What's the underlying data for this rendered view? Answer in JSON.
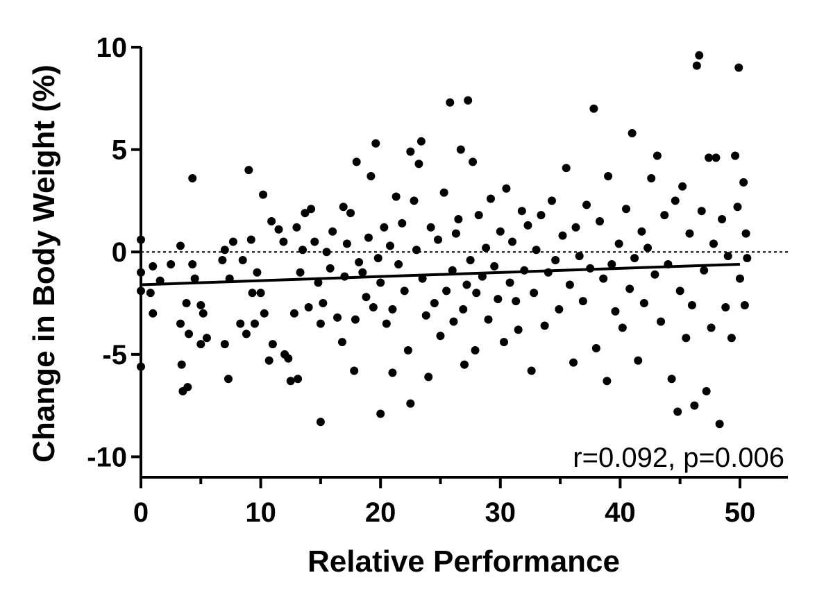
{
  "chart_data": {
    "type": "scatter",
    "title": "",
    "xlabel": "Relative Performance",
    "ylabel": "Change in Body Weight (%)",
    "xlim": [
      0,
      54
    ],
    "ylim": [
      -11,
      10
    ],
    "xticks": [
      0,
      10,
      20,
      30,
      40,
      50
    ],
    "yticks": [
      10,
      5,
      0,
      -5,
      -10
    ],
    "grid": false,
    "reference_line": {
      "y": 0,
      "style": "dotted"
    },
    "fit_line": {
      "x": [
        0,
        50
      ],
      "y": [
        -1.6,
        -0.6
      ]
    },
    "annotation": "r=0.092, p=0.006",
    "point_color": "#000000",
    "series": [
      {
        "values": [
          [
            0,
            0.6
          ],
          [
            0,
            -1.0
          ],
          [
            0,
            -1.9
          ],
          [
            0,
            -5.6
          ],
          [
            0.8,
            -2.0
          ],
          [
            1.0,
            -3.0
          ],
          [
            1.0,
            -0.7
          ],
          [
            1.6,
            -1.4
          ],
          [
            2.5,
            -0.6
          ],
          [
            3.3,
            0.3
          ],
          [
            3.3,
            -3.5
          ],
          [
            3.4,
            -5.5
          ],
          [
            3.5,
            -6.8
          ],
          [
            3.8,
            -2.5
          ],
          [
            3.9,
            -6.6
          ],
          [
            4.0,
            -4.0
          ],
          [
            4.3,
            3.6
          ],
          [
            4.3,
            -0.6
          ],
          [
            4.5,
            -1.3
          ],
          [
            5.0,
            -2.6
          ],
          [
            5.0,
            -4.5
          ],
          [
            5.2,
            -3.0
          ],
          [
            5.5,
            -4.2
          ],
          [
            6.8,
            -0.4
          ],
          [
            7.0,
            -4.5
          ],
          [
            7.0,
            0.1
          ],
          [
            7.3,
            -6.2
          ],
          [
            7.4,
            -1.3
          ],
          [
            7.7,
            0.5
          ],
          [
            8.3,
            -3.5
          ],
          [
            8.5,
            -0.4
          ],
          [
            8.8,
            -4.0
          ],
          [
            9.0,
            4.0
          ],
          [
            9.2,
            0.6
          ],
          [
            9.3,
            -2.0
          ],
          [
            9.5,
            -3.5
          ],
          [
            9.7,
            -1.0
          ],
          [
            10.0,
            -2.0
          ],
          [
            10.2,
            2.8
          ],
          [
            10.3,
            -3.0
          ],
          [
            10.7,
            -5.3
          ],
          [
            10.9,
            1.5
          ],
          [
            11.0,
            -4.5
          ],
          [
            11.5,
            1.1
          ],
          [
            11.9,
            0.5
          ],
          [
            12.0,
            -5.0
          ],
          [
            12.3,
            -5.2
          ],
          [
            12.5,
            -6.3
          ],
          [
            12.8,
            -3.0
          ],
          [
            13.0,
            1.2
          ],
          [
            13.1,
            -6.2
          ],
          [
            13.3,
            -1.0
          ],
          [
            13.5,
            0.1
          ],
          [
            13.7,
            1.9
          ],
          [
            14.0,
            -2.7
          ],
          [
            14.2,
            2.1
          ],
          [
            14.5,
            0.5
          ],
          [
            14.8,
            -1.5
          ],
          [
            15.0,
            -8.3
          ],
          [
            15.0,
            -3.5
          ],
          [
            15.2,
            -2.5
          ],
          [
            15.5,
            0.0
          ],
          [
            15.8,
            -0.8
          ],
          [
            16.0,
            1.0
          ],
          [
            16.4,
            -3.2
          ],
          [
            16.8,
            -4.4
          ],
          [
            16.9,
            2.2
          ],
          [
            17.0,
            -1.2
          ],
          [
            17.2,
            0.4
          ],
          [
            17.5,
            1.9
          ],
          [
            17.8,
            -5.8
          ],
          [
            17.9,
            -3.3
          ],
          [
            18.0,
            4.4
          ],
          [
            18.2,
            -0.5
          ],
          [
            18.5,
            -1.0
          ],
          [
            18.8,
            -2.2
          ],
          [
            19.0,
            0.7
          ],
          [
            19.2,
            3.7
          ],
          [
            19.4,
            -2.7
          ],
          [
            19.6,
            5.3
          ],
          [
            19.8,
            -0.3
          ],
          [
            20.0,
            -7.9
          ],
          [
            20.0,
            -1.5
          ],
          [
            20.3,
            1.2
          ],
          [
            20.5,
            -3.5
          ],
          [
            20.8,
            0.3
          ],
          [
            21.0,
            -2.8
          ],
          [
            21.0,
            -5.9
          ],
          [
            21.3,
            2.7
          ],
          [
            21.5,
            -0.6
          ],
          [
            21.8,
            1.4
          ],
          [
            22.0,
            -1.9
          ],
          [
            22.3,
            -4.8
          ],
          [
            22.5,
            4.9
          ],
          [
            22.5,
            -7.4
          ],
          [
            22.8,
            2.5
          ],
          [
            23.0,
            0.1
          ],
          [
            23.2,
            4.3
          ],
          [
            23.4,
            5.4
          ],
          [
            23.5,
            -1.3
          ],
          [
            23.8,
            -3.1
          ],
          [
            24.0,
            -6.1
          ],
          [
            24.2,
            1.2
          ],
          [
            24.5,
            -2.5
          ],
          [
            24.8,
            0.6
          ],
          [
            25.0,
            -4.1
          ],
          [
            25.3,
            2.9
          ],
          [
            25.5,
            -1.9
          ],
          [
            25.8,
            7.3
          ],
          [
            26.0,
            -0.9
          ],
          [
            26.1,
            -3.4
          ],
          [
            26.3,
            0.9
          ],
          [
            26.5,
            1.6
          ],
          [
            26.7,
            5.0
          ],
          [
            26.9,
            -2.8
          ],
          [
            27.0,
            -5.5
          ],
          [
            27.2,
            -1.6
          ],
          [
            27.3,
            7.4
          ],
          [
            27.5,
            -0.4
          ],
          [
            27.7,
            4.4
          ],
          [
            27.9,
            -4.8
          ],
          [
            28.0,
            -2.0
          ],
          [
            28.2,
            1.8
          ],
          [
            28.5,
            -1.2
          ],
          [
            28.8,
            0.2
          ],
          [
            29.0,
            -3.3
          ],
          [
            29.2,
            2.6
          ],
          [
            29.5,
            -0.7
          ],
          [
            29.8,
            -2.3
          ],
          [
            30.0,
            1.0
          ],
          [
            30.3,
            -4.4
          ],
          [
            30.5,
            3.1
          ],
          [
            30.8,
            -1.5
          ],
          [
            31.0,
            0.5
          ],
          [
            31.3,
            -2.4
          ],
          [
            31.5,
            -3.8
          ],
          [
            31.8,
            2.0
          ],
          [
            32.0,
            -0.9
          ],
          [
            32.3,
            1.3
          ],
          [
            32.6,
            -5.8
          ],
          [
            32.8,
            -2.0
          ],
          [
            33.0,
            0.1
          ],
          [
            33.4,
            1.8
          ],
          [
            33.7,
            -3.6
          ],
          [
            34.0,
            -1.0
          ],
          [
            34.3,
            2.5
          ],
          [
            34.6,
            -0.4
          ],
          [
            34.9,
            -2.8
          ],
          [
            35.2,
            0.8
          ],
          [
            35.5,
            4.1
          ],
          [
            35.8,
            -1.6
          ],
          [
            36.1,
            -5.4
          ],
          [
            36.3,
            1.2
          ],
          [
            36.6,
            -0.2
          ],
          [
            36.9,
            -2.4
          ],
          [
            37.2,
            2.3
          ],
          [
            37.5,
            -0.8
          ],
          [
            37.8,
            7.0
          ],
          [
            38.0,
            -4.7
          ],
          [
            38.3,
            1.5
          ],
          [
            38.6,
            -1.3
          ],
          [
            38.9,
            -6.3
          ],
          [
            39.0,
            3.7
          ],
          [
            39.3,
            -0.6
          ],
          [
            39.6,
            -2.9
          ],
          [
            39.9,
            0.4
          ],
          [
            40.2,
            -3.7
          ],
          [
            40.5,
            2.1
          ],
          [
            40.8,
            -1.8
          ],
          [
            41.0,
            5.8
          ],
          [
            41.2,
            -0.3
          ],
          [
            41.5,
            -5.3
          ],
          [
            41.8,
            1.0
          ],
          [
            42.0,
            -2.5
          ],
          [
            42.3,
            0.2
          ],
          [
            42.6,
            3.6
          ],
          [
            42.9,
            -1.1
          ],
          [
            43.1,
            4.7
          ],
          [
            43.4,
            -3.4
          ],
          [
            43.7,
            1.8
          ],
          [
            44.0,
            -0.6
          ],
          [
            44.3,
            -6.2
          ],
          [
            44.6,
            2.5
          ],
          [
            44.8,
            -7.8
          ],
          [
            45.0,
            -1.9
          ],
          [
            45.2,
            3.2
          ],
          [
            45.5,
            -4.2
          ],
          [
            45.8,
            0.9
          ],
          [
            46.0,
            -2.6
          ],
          [
            46.2,
            -7.5
          ],
          [
            46.4,
            9.1
          ],
          [
            46.6,
            9.6
          ],
          [
            46.8,
            2.0
          ],
          [
            47.0,
            -0.9
          ],
          [
            47.2,
            -6.8
          ],
          [
            47.4,
            4.6
          ],
          [
            47.6,
            -3.7
          ],
          [
            47.8,
            0.4
          ],
          [
            48.0,
            4.6
          ],
          [
            48.3,
            -8.4
          ],
          [
            48.5,
            1.6
          ],
          [
            48.8,
            -2.7
          ],
          [
            49.0,
            -0.2
          ],
          [
            49.3,
            -4.2
          ],
          [
            49.6,
            4.7
          ],
          [
            49.8,
            2.2
          ],
          [
            49.9,
            9.0
          ],
          [
            50.0,
            -1.3
          ],
          [
            50.3,
            3.4
          ],
          [
            50.4,
            -2.6
          ],
          [
            50.5,
            0.9
          ],
          [
            50.6,
            -0.3
          ]
        ]
      }
    ]
  }
}
